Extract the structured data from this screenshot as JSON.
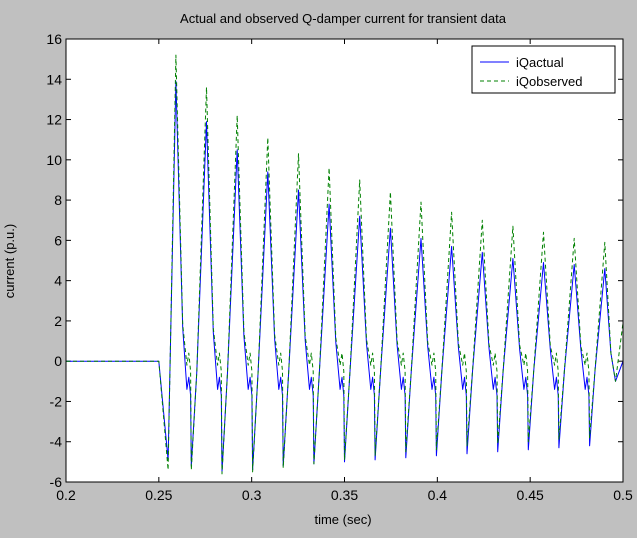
{
  "figure": {
    "background": "#c0c0c0",
    "axes_background": "#ffffff"
  },
  "chart_data": {
    "type": "line",
    "title": "Actual and observed Q-damper current for transient data",
    "xlabel": "time (sec)",
    "ylabel": "current (p.u.)",
    "xlim": [
      0.2,
      0.5
    ],
    "ylim": [
      -6,
      16
    ],
    "x_ticks": [
      0.2,
      0.25,
      0.3,
      0.35,
      0.4,
      0.45,
      0.5
    ],
    "x_tick_labels": [
      "0.2",
      "0.25",
      "0.3",
      "0.35",
      "0.4",
      "0.45",
      "0.5"
    ],
    "y_ticks": [
      -6,
      -4,
      -2,
      0,
      2,
      4,
      6,
      8,
      10,
      12,
      14,
      16
    ],
    "y_tick_labels": [
      "-6",
      "-4",
      "-2",
      "0",
      "2",
      "4",
      "6",
      "8",
      "10",
      "12",
      "14",
      "16"
    ],
    "grid": false,
    "legend_position": "top-right",
    "series": [
      {
        "name": "iQactual",
        "color": "#0000ff",
        "style": "solid",
        "signal": {
          "baseline": 0.0,
          "onset": 0.25,
          "first_trough": {
            "x": 0.255,
            "y": -4.9
          },
          "period": 0.0165,
          "peaks": [
            {
              "x": 0.2592,
              "y": 13.9
            },
            {
              "x": 0.2757,
              "y": 11.9
            },
            {
              "x": 0.2922,
              "y": 10.5
            },
            {
              "x": 0.3087,
              "y": 9.4
            },
            {
              "x": 0.3252,
              "y": 8.5
            },
            {
              "x": 0.3417,
              "y": 7.8
            },
            {
              "x": 0.3582,
              "y": 7.2
            },
            {
              "x": 0.3747,
              "y": 6.6
            },
            {
              "x": 0.3912,
              "y": 6.1
            },
            {
              "x": 0.4077,
              "y": 5.7
            },
            {
              "x": 0.4242,
              "y": 5.4
            },
            {
              "x": 0.4407,
              "y": 5.1
            },
            {
              "x": 0.4572,
              "y": 4.9
            },
            {
              "x": 0.4737,
              "y": 4.8
            },
            {
              "x": 0.4902,
              "y": 4.6
            }
          ],
          "troughs": [
            {
              "x": 0.2675,
              "y": -5.2
            },
            {
              "x": 0.284,
              "y": -5.5
            },
            {
              "x": 0.3005,
              "y": -5.4
            },
            {
              "x": 0.317,
              "y": -5.2
            },
            {
              "x": 0.3335,
              "y": -5.1
            },
            {
              "x": 0.35,
              "y": -5.0
            },
            {
              "x": 0.3665,
              "y": -4.9
            },
            {
              "x": 0.383,
              "y": -4.8
            },
            {
              "x": 0.3995,
              "y": -4.7
            },
            {
              "x": 0.416,
              "y": -4.6
            },
            {
              "x": 0.4325,
              "y": -4.5
            },
            {
              "x": 0.449,
              "y": -4.4
            },
            {
              "x": 0.4655,
              "y": -4.3
            },
            {
              "x": 0.482,
              "y": -4.2
            }
          ],
          "secondary_bump": -0.8,
          "end_value": 0.0
        }
      },
      {
        "name": "iQobserved",
        "color": "#008000",
        "style": "dashed",
        "signal": {
          "baseline": 0.0,
          "onset": 0.25,
          "first_trough": {
            "x": 0.255,
            "y": -5.4
          },
          "period": 0.0165,
          "peaks": [
            {
              "x": 0.2592,
              "y": 15.2
            },
            {
              "x": 0.2757,
              "y": 13.6
            },
            {
              "x": 0.2922,
              "y": 12.2
            },
            {
              "x": 0.3087,
              "y": 11.1
            },
            {
              "x": 0.3252,
              "y": 10.3
            },
            {
              "x": 0.3417,
              "y": 9.6
            },
            {
              "x": 0.3582,
              "y": 9.0
            },
            {
              "x": 0.3747,
              "y": 8.4
            },
            {
              "x": 0.3912,
              "y": 7.9
            },
            {
              "x": 0.4077,
              "y": 7.4
            },
            {
              "x": 0.4242,
              "y": 7.0
            },
            {
              "x": 0.4407,
              "y": 6.7
            },
            {
              "x": 0.4572,
              "y": 6.4
            },
            {
              "x": 0.4737,
              "y": 6.1
            },
            {
              "x": 0.4902,
              "y": 5.9
            }
          ],
          "troughs": [
            {
              "x": 0.2675,
              "y": -5.4
            },
            {
              "x": 0.284,
              "y": -5.6
            },
            {
              "x": 0.3005,
              "y": -5.5
            },
            {
              "x": 0.317,
              "y": -5.3
            },
            {
              "x": 0.3335,
              "y": -5.1
            },
            {
              "x": 0.35,
              "y": -4.9
            },
            {
              "x": 0.3665,
              "y": -4.7
            },
            {
              "x": 0.383,
              "y": -4.5
            },
            {
              "x": 0.3995,
              "y": -4.4
            },
            {
              "x": 0.416,
              "y": -4.2
            },
            {
              "x": 0.4325,
              "y": -4.1
            },
            {
              "x": 0.449,
              "y": -4.0
            },
            {
              "x": 0.4655,
              "y": -3.9
            },
            {
              "x": 0.482,
              "y": -3.8
            }
          ],
          "secondary_bump": 0.4,
          "end_value": 1.9
        }
      }
    ]
  }
}
